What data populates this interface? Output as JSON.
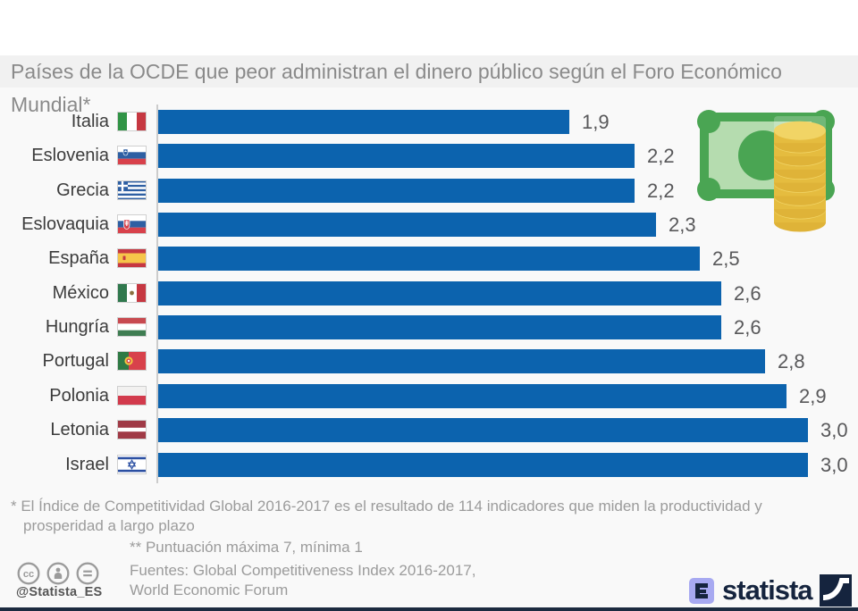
{
  "title": "Países de la OCDE que peor administran el dinero público según el Foro Económico Mundial*",
  "chart_data": {
    "type": "bar",
    "orientation": "horizontal",
    "title": "Países de la OCDE que peor administran el dinero público según el Foro Económico Mundial*",
    "categories": [
      "Italia",
      "Eslovenia",
      "Grecia",
      "Eslovaquia",
      "España",
      "México",
      "Hungría",
      "Portugal",
      "Polonia",
      "Letonia",
      "Israel"
    ],
    "values": [
      1.9,
      2.2,
      2.2,
      2.3,
      2.5,
      2.6,
      2.6,
      2.8,
      2.9,
      3.0,
      3.0
    ],
    "value_labels": [
      "1,9",
      "2,2",
      "2,2",
      "2,3",
      "2,5",
      "2,6",
      "2,6",
      "2,8",
      "2,9",
      "3,0",
      "3,0"
    ],
    "flags": [
      "italia",
      "eslovenia",
      "grecia",
      "eslovaquia",
      "espana",
      "mexico",
      "hungria",
      "portugal",
      "polonia",
      "letonia",
      "israel"
    ],
    "xlabel": "",
    "ylabel": "",
    "xlim": [
      0,
      3.0
    ],
    "score_scale_note": "Puntuación máxima 7, mínima 1",
    "grid": false,
    "legend": false,
    "bar_color": "#0c63ae"
  },
  "footnotes": {
    "note1_line1": "* El Índice de Competitividad Global 2016-2017 es el resultado de 114 indicadores que miden la productividad y",
    "note1_line2": "prosperidad a largo plazo",
    "note2": "** Puntuación máxima 7, mínima 1",
    "sources_line1": "Fuentes: Global Competitiveness Index 2016-2017,",
    "sources_line2": "World Economic Forum"
  },
  "footer": {
    "handle": "@Statista_ES",
    "brand": "statista"
  },
  "colors": {
    "bar": "#0c63ae",
    "title_text": "#8a8a8a",
    "title_band": "#f1f1f1",
    "brand_navy": "#15243e",
    "note_green": "#4aa553",
    "note_green_light": "#b5dcaf",
    "coin_gold": "#e5bc3f",
    "coin_gold_light": "#f1d465"
  }
}
